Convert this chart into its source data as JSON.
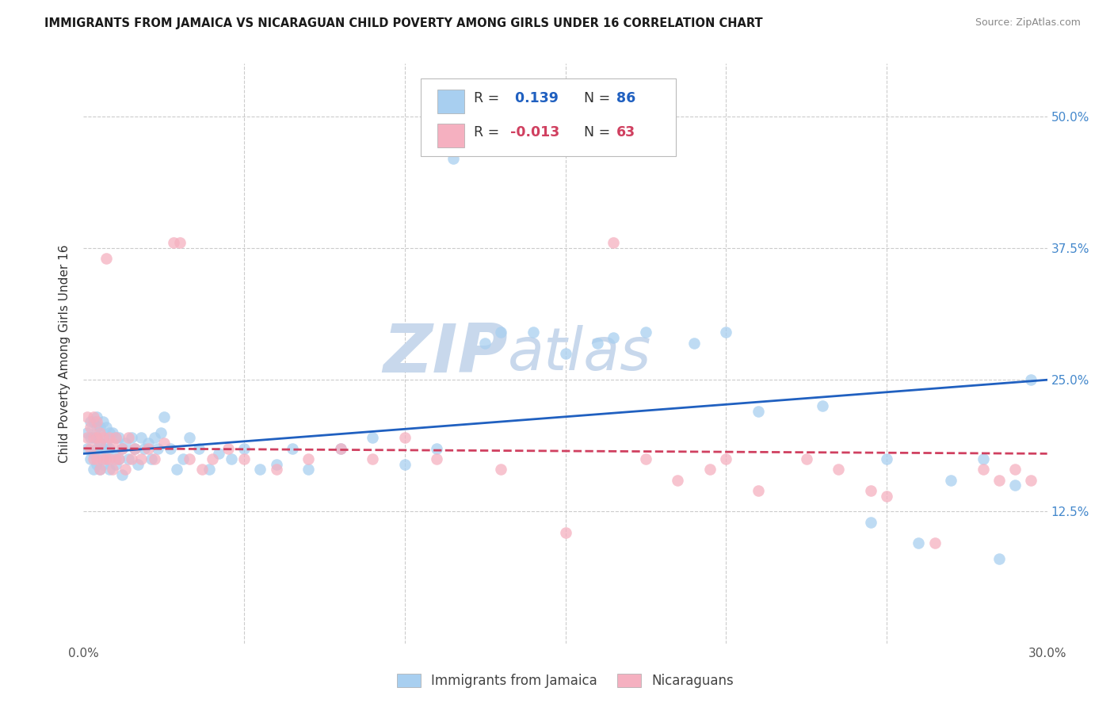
{
  "title": "IMMIGRANTS FROM JAMAICA VS NICARAGUAN CHILD POVERTY AMONG GIRLS UNDER 16 CORRELATION CHART",
  "source": "Source: ZipAtlas.com",
  "ylabel": "Child Poverty Among Girls Under 16",
  "xmin": 0.0,
  "xmax": 0.3,
  "ymin": 0.0,
  "ymax": 0.55,
  "y_tick_positions": [
    0.125,
    0.25,
    0.375,
    0.5
  ],
  "y_tick_labels": [
    "12.5%",
    "25.0%",
    "37.5%",
    "50.0%"
  ],
  "x_tick_positions": [
    0.0,
    0.05,
    0.1,
    0.15,
    0.2,
    0.25,
    0.3
  ],
  "x_tick_labels": [
    "0.0%",
    "",
    "",
    "",
    "",
    "",
    "30.0%"
  ],
  "legend_r1_text": "R = ",
  "legend_r1_val": " 0.139",
  "legend_n1_text": "N = ",
  "legend_n1_val": "86",
  "legend_r2_text": "R = ",
  "legend_r2_val": "-0.013",
  "legend_n2_text": "N = ",
  "legend_n2_val": "63",
  "color_jamaica_fill": "#A8CFF0",
  "color_jamaica_line": "#2060C0",
  "color_nicaragua_fill": "#F5B0C0",
  "color_nicaragua_line": "#D04060",
  "color_rv1": "#2060C0",
  "color_rv2": "#D04060",
  "color_nv": "#333333",
  "color_grid": "#cccccc",
  "watermark": "ZIP",
  "watermark2": "atlas",
  "watermark_color1": "#c8d8ec",
  "watermark_color2": "#c8d8ec",
  "background": "#ffffff",
  "title_color": "#1a1a1a",
  "source_color": "#888888",
  "axis_label_color": "#333333",
  "tick_color_right": "#4488cc",
  "tick_color_bottom": "#555555",
  "jamaica_x": [
    0.001,
    0.001,
    0.002,
    0.002,
    0.002,
    0.003,
    0.003,
    0.003,
    0.003,
    0.004,
    0.004,
    0.004,
    0.004,
    0.004,
    0.005,
    0.005,
    0.005,
    0.005,
    0.006,
    0.006,
    0.006,
    0.006,
    0.007,
    0.007,
    0.007,
    0.008,
    0.008,
    0.008,
    0.009,
    0.009,
    0.01,
    0.01,
    0.011,
    0.011,
    0.012,
    0.012,
    0.013,
    0.014,
    0.015,
    0.016,
    0.017,
    0.018,
    0.019,
    0.02,
    0.021,
    0.022,
    0.023,
    0.024,
    0.025,
    0.027,
    0.029,
    0.031,
    0.033,
    0.036,
    0.039,
    0.042,
    0.046,
    0.05,
    0.055,
    0.06,
    0.065,
    0.07,
    0.08,
    0.09,
    0.1,
    0.11,
    0.115,
    0.125,
    0.13,
    0.14,
    0.15,
    0.16,
    0.165,
    0.175,
    0.19,
    0.2,
    0.21,
    0.23,
    0.245,
    0.25,
    0.26,
    0.27,
    0.28,
    0.285,
    0.29,
    0.295
  ],
  "jamaica_y": [
    0.185,
    0.2,
    0.175,
    0.195,
    0.21,
    0.165,
    0.18,
    0.195,
    0.21,
    0.17,
    0.185,
    0.195,
    0.205,
    0.215,
    0.165,
    0.18,
    0.19,
    0.205,
    0.17,
    0.185,
    0.195,
    0.21,
    0.175,
    0.19,
    0.205,
    0.165,
    0.185,
    0.2,
    0.18,
    0.2,
    0.17,
    0.195,
    0.175,
    0.195,
    0.16,
    0.185,
    0.19,
    0.175,
    0.195,
    0.185,
    0.17,
    0.195,
    0.185,
    0.19,
    0.175,
    0.195,
    0.185,
    0.2,
    0.215,
    0.185,
    0.165,
    0.175,
    0.195,
    0.185,
    0.165,
    0.18,
    0.175,
    0.185,
    0.165,
    0.17,
    0.185,
    0.165,
    0.185,
    0.195,
    0.17,
    0.185,
    0.46,
    0.285,
    0.295,
    0.295,
    0.275,
    0.285,
    0.29,
    0.295,
    0.285,
    0.295,
    0.22,
    0.225,
    0.115,
    0.175,
    0.095,
    0.155,
    0.175,
    0.08,
    0.15,
    0.25
  ],
  "nicaragua_x": [
    0.001,
    0.001,
    0.002,
    0.002,
    0.003,
    0.003,
    0.003,
    0.004,
    0.004,
    0.004,
    0.005,
    0.005,
    0.005,
    0.006,
    0.006,
    0.007,
    0.007,
    0.008,
    0.008,
    0.009,
    0.009,
    0.01,
    0.01,
    0.011,
    0.012,
    0.013,
    0.014,
    0.015,
    0.016,
    0.018,
    0.02,
    0.022,
    0.025,
    0.028,
    0.03,
    0.033,
    0.037,
    0.04,
    0.045,
    0.05,
    0.06,
    0.07,
    0.08,
    0.09,
    0.1,
    0.11,
    0.13,
    0.15,
    0.165,
    0.175,
    0.185,
    0.195,
    0.2,
    0.21,
    0.225,
    0.235,
    0.245,
    0.25,
    0.265,
    0.28,
    0.285,
    0.29,
    0.295
  ],
  "nicaragua_y": [
    0.195,
    0.215,
    0.185,
    0.205,
    0.175,
    0.195,
    0.215,
    0.175,
    0.195,
    0.21,
    0.165,
    0.19,
    0.2,
    0.175,
    0.195,
    0.175,
    0.365,
    0.175,
    0.195,
    0.165,
    0.19,
    0.175,
    0.195,
    0.175,
    0.185,
    0.165,
    0.195,
    0.175,
    0.185,
    0.175,
    0.185,
    0.175,
    0.19,
    0.38,
    0.38,
    0.175,
    0.165,
    0.175,
    0.185,
    0.175,
    0.165,
    0.175,
    0.185,
    0.175,
    0.195,
    0.175,
    0.165,
    0.105,
    0.38,
    0.175,
    0.155,
    0.165,
    0.175,
    0.145,
    0.175,
    0.165,
    0.145,
    0.14,
    0.095,
    0.165,
    0.155,
    0.165,
    0.155
  ]
}
